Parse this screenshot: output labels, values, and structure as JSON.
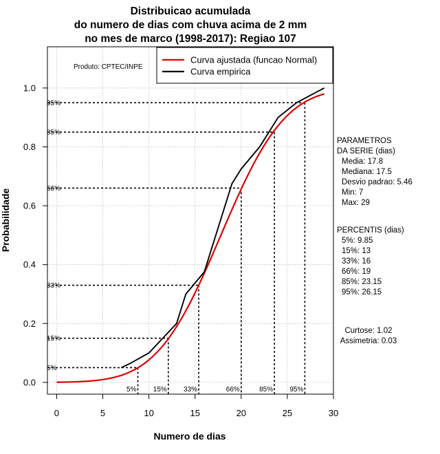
{
  "chart_data": {
    "type": "line",
    "title_lines": [
      "Distribuicao acumulada",
      "do numero de dias com chuva acima de 2 mm",
      "no mes de marco (1998-2017): Regiao 107"
    ],
    "xlabel": "Numero de dias",
    "ylabel": "Probabilidade",
    "xlim": [
      -1,
      30
    ],
    "ylim": [
      -0.04,
      1.14
    ],
    "x_ticks": [
      0,
      5,
      10,
      15,
      20,
      25,
      30
    ],
    "x_tick_labels": [
      "0",
      "5",
      "10",
      "15",
      "20",
      "25",
      "30"
    ],
    "y_ticks": [
      0.0,
      0.2,
      0.4,
      0.6,
      0.8,
      1.0
    ],
    "y_tick_labels": [
      "0.0",
      "0.2",
      "0.4",
      "0.6",
      "0.8",
      "1.0"
    ],
    "grid": true,
    "product_label": "Produto: CPTEC/INPE",
    "legend": [
      {
        "name": "Curva ajustada (funcao Normal)",
        "color": "#dd0000"
      },
      {
        "name": "Curva empirica",
        "color": "#000000"
      }
    ],
    "series": [
      {
        "name": "Curva ajustada (funcao Normal)",
        "color": "#dd0000",
        "distribution": "normal",
        "mean": 17.8,
        "sd": 5.46,
        "x_range": [
          0,
          29
        ]
      },
      {
        "name": "Curva empirica",
        "color": "#000000",
        "x": [
          7,
          8,
          10,
          13,
          14,
          16,
          19,
          20,
          22,
          24,
          26,
          29
        ],
        "y": [
          0.05,
          0.065,
          0.1,
          0.2,
          0.3,
          0.375,
          0.675,
          0.725,
          0.8,
          0.9,
          0.95,
          1.0
        ]
      }
    ],
    "percentiles": [
      {
        "label": "5%",
        "x": 8.8,
        "p": 0.05
      },
      {
        "label": "15%",
        "x": 12.1,
        "p": 0.15
      },
      {
        "label": "33%",
        "x": 15.4,
        "p": 0.33
      },
      {
        "label": "66%",
        "x": 20.0,
        "p": 0.66
      },
      {
        "label": "85%",
        "x": 23.6,
        "p": 0.85
      },
      {
        "label": "95%",
        "x": 26.9,
        "p": 0.95
      }
    ],
    "parametros": {
      "heading": [
        "PARAMETROS",
        "DA SERIE (dias)"
      ],
      "lines": [
        "Media: 17.8",
        "Mediana: 17.5",
        "Desvio padrao: 5.46",
        "Min: 7",
        "Max: 29"
      ]
    },
    "percentis": {
      "heading": "PERCENTIS (dias)",
      "lines": [
        "5%: 9.85",
        "15%: 13",
        "33%: 16",
        "66%: 19",
        "85%: 23.15",
        "95%: 26.15"
      ]
    },
    "shape_stats": [
      "Curtose: 1.02",
      "Assimetria: 0.03"
    ]
  }
}
